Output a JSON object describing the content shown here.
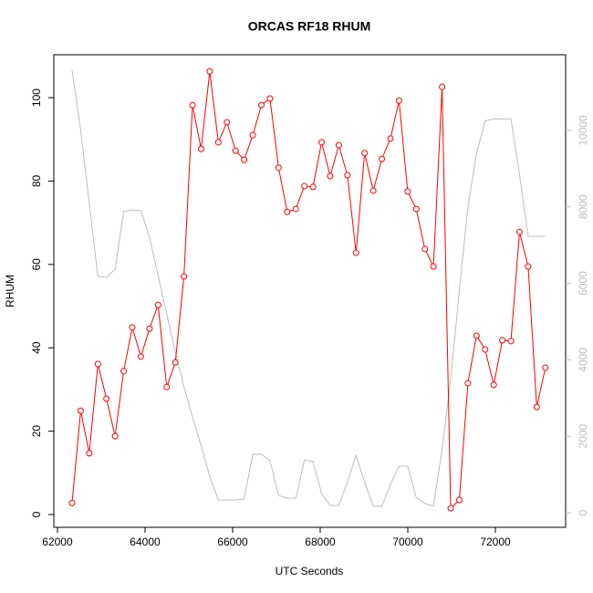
{
  "chart_data": {
    "type": "line",
    "title": "ORCAS RF18 RHUM",
    "x_label": "UTC Seconds",
    "y_label": "RHUM",
    "x": [
      62333,
      62530,
      62726,
      62923,
      63119,
      63316,
      63512,
      63709,
      63905,
      64102,
      64298,
      64495,
      64691,
      64888,
      65084,
      65281,
      65477,
      65674,
      65870,
      66067,
      66263,
      66460,
      66656,
      66853,
      67049,
      67246,
      67442,
      67639,
      67835,
      68032,
      68228,
      68425,
      68621,
      68818,
      69014,
      69211,
      69407,
      69604,
      69800,
      69997,
      70193,
      70390,
      70586,
      70783,
      70979,
      71176,
      71372,
      71569,
      71765,
      71962,
      72158,
      72355,
      72551,
      72748,
      72944,
      73141
    ],
    "series": [
      {
        "color": "#bebebe",
        "axis": "y2",
        "markers": false,
        "values": [
          11575,
          10000,
          8100,
          6180,
          6160,
          6370,
          7880,
          7920,
          7900,
          7210,
          6200,
          5200,
          4200,
          3300,
          2500,
          1750,
          950,
          330,
          330,
          330,
          360,
          1530,
          1530,
          1360,
          450,
          380,
          380,
          1380,
          1340,
          500,
          190,
          190,
          800,
          1500,
          800,
          170,
          170,
          740,
          1220,
          1220,
          400,
          240,
          170,
          1650,
          3500,
          5800,
          8000,
          9400,
          10250,
          10300,
          10300,
          10300,
          8850,
          7230,
          7230,
          7230
        ]
      },
      {
        "color": "#ff0000",
        "axis": "y",
        "markers": true,
        "values": [
          2.8,
          24.9,
          14.7,
          36.1,
          27.8,
          18.8,
          34.4,
          44.9,
          37.9,
          44.6,
          50.3,
          30.6,
          36.5,
          57.1,
          98.2,
          87.7,
          106.3,
          89.3,
          94.1,
          87.3,
          85.1,
          91.0,
          98.2,
          99.8,
          83.2,
          72.6,
          73.3,
          78.8,
          78.6,
          89.3,
          81.2,
          88.6,
          81.4,
          62.8,
          86.7,
          77.7,
          85.3,
          90.2,
          99.3,
          77.5,
          73.3,
          63.7,
          59.5,
          102.6,
          1.5,
          3.5,
          31.5,
          42.9,
          39.6,
          31.1,
          41.8,
          41.6,
          67.8,
          59.5,
          25.8,
          35.2
        ]
      }
    ],
    "xlim": [
      61917,
      73604
    ],
    "xticks": [
      62000,
      64000,
      66000,
      68000,
      70000,
      72000
    ],
    "ylim": [
      -3.06,
      110.3
    ],
    "yticks": [
      0,
      20,
      40,
      60,
      80,
      100
    ],
    "y2lim": [
      -382,
      11980
    ],
    "y2ticks": [
      0,
      2000,
      4000,
      6000,
      8000,
      10000
    ],
    "y2_tick_color": "#bebebe"
  }
}
